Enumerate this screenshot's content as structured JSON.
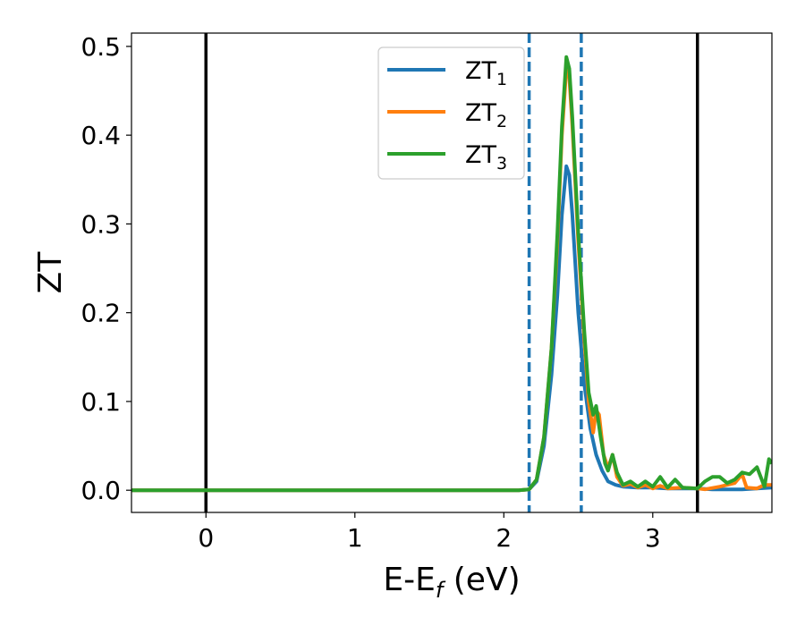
{
  "chart_data": {
    "type": "line",
    "title": "",
    "xlabel": {
      "main": "E-E",
      "sub": "f",
      "tail": " (eV)"
    },
    "ylabel": "ZT",
    "xlim": [
      -0.5,
      3.8
    ],
    "ylim": [
      -0.025,
      0.515
    ],
    "x_ticks": [
      {
        "value": 0,
        "label": "0"
      },
      {
        "value": 1,
        "label": "1"
      },
      {
        "value": 2,
        "label": "2"
      },
      {
        "value": 3,
        "label": "3"
      }
    ],
    "y_ticks": [
      {
        "value": 0.0,
        "label": "0.0"
      },
      {
        "value": 0.1,
        "label": "0.1"
      },
      {
        "value": 0.2,
        "label": "0.2"
      },
      {
        "value": 0.3,
        "label": "0.3"
      },
      {
        "value": 0.4,
        "label": "0.4"
      },
      {
        "value": 0.5,
        "label": "0.5"
      }
    ],
    "grid": false,
    "legend_position": "top-center",
    "vertical_lines": [
      {
        "x": 0.0,
        "style": "solid",
        "color": "#000000"
      },
      {
        "x": 3.3,
        "style": "solid",
        "color": "#000000"
      },
      {
        "x": 2.17,
        "style": "dashed",
        "color": "#1f77b4"
      },
      {
        "x": 2.52,
        "style": "dashed",
        "color": "#1f77b4"
      }
    ],
    "series": [
      {
        "name": {
          "main": "ZT",
          "sub": "1"
        },
        "color": "#1f77b4",
        "points": [
          [
            -0.5,
            0
          ],
          [
            2.1,
            0
          ],
          [
            2.17,
            0.001
          ],
          [
            2.22,
            0.01
          ],
          [
            2.27,
            0.05
          ],
          [
            2.32,
            0.13
          ],
          [
            2.36,
            0.22
          ],
          [
            2.39,
            0.31
          ],
          [
            2.42,
            0.365
          ],
          [
            2.44,
            0.355
          ],
          [
            2.46,
            0.31
          ],
          [
            2.5,
            0.2
          ],
          [
            2.54,
            0.12
          ],
          [
            2.58,
            0.07
          ],
          [
            2.62,
            0.04
          ],
          [
            2.66,
            0.022
          ],
          [
            2.7,
            0.01
          ],
          [
            2.75,
            0.006
          ],
          [
            2.8,
            0.004
          ],
          [
            2.9,
            0.003
          ],
          [
            3.0,
            0.003
          ],
          [
            3.1,
            0.002
          ],
          [
            3.2,
            0.002
          ],
          [
            3.3,
            0.002
          ],
          [
            3.4,
            0.001
          ],
          [
            3.5,
            0.001
          ],
          [
            3.6,
            0.001
          ],
          [
            3.7,
            0.002
          ],
          [
            3.8,
            0.003
          ]
        ]
      },
      {
        "name": {
          "main": "ZT",
          "sub": "2"
        },
        "color": "#ff7f0e",
        "points": [
          [
            -0.5,
            0
          ],
          [
            2.1,
            0
          ],
          [
            2.17,
            0.001
          ],
          [
            2.22,
            0.012
          ],
          [
            2.27,
            0.06
          ],
          [
            2.32,
            0.16
          ],
          [
            2.36,
            0.28
          ],
          [
            2.39,
            0.4
          ],
          [
            2.42,
            0.475
          ],
          [
            2.44,
            0.465
          ],
          [
            2.46,
            0.41
          ],
          [
            2.5,
            0.28
          ],
          [
            2.54,
            0.17
          ],
          [
            2.57,
            0.1
          ],
          [
            2.6,
            0.065
          ],
          [
            2.62,
            0.09
          ],
          [
            2.64,
            0.085
          ],
          [
            2.67,
            0.04
          ],
          [
            2.7,
            0.025
          ],
          [
            2.73,
            0.04
          ],
          [
            2.76,
            0.015
          ],
          [
            2.8,
            0.005
          ],
          [
            2.85,
            0.007
          ],
          [
            2.9,
            0.003
          ],
          [
            2.95,
            0.006
          ],
          [
            3.0,
            0.002
          ],
          [
            3.05,
            0.005
          ],
          [
            3.1,
            0.002
          ],
          [
            3.2,
            0.003
          ],
          [
            3.3,
            0.002
          ],
          [
            3.35,
            0.001
          ],
          [
            3.45,
            0.004
          ],
          [
            3.55,
            0.008
          ],
          [
            3.6,
            0.018
          ],
          [
            3.63,
            0.003
          ],
          [
            3.7,
            0.002
          ],
          [
            3.75,
            0.006
          ],
          [
            3.8,
            0.006
          ]
        ]
      },
      {
        "name": {
          "main": "ZT",
          "sub": "3"
        },
        "color": "#2ca02c",
        "points": [
          [
            -0.5,
            0
          ],
          [
            2.1,
            0
          ],
          [
            2.17,
            0.001
          ],
          [
            2.22,
            0.012
          ],
          [
            2.27,
            0.06
          ],
          [
            2.32,
            0.16
          ],
          [
            2.36,
            0.29
          ],
          [
            2.39,
            0.41
          ],
          [
            2.42,
            0.488
          ],
          [
            2.44,
            0.475
          ],
          [
            2.46,
            0.42
          ],
          [
            2.5,
            0.29
          ],
          [
            2.54,
            0.18
          ],
          [
            2.57,
            0.11
          ],
          [
            2.6,
            0.085
          ],
          [
            2.62,
            0.095
          ],
          [
            2.65,
            0.06
          ],
          [
            2.68,
            0.03
          ],
          [
            2.7,
            0.022
          ],
          [
            2.73,
            0.04
          ],
          [
            2.76,
            0.02
          ],
          [
            2.8,
            0.006
          ],
          [
            2.85,
            0.01
          ],
          [
            2.9,
            0.004
          ],
          [
            2.95,
            0.01
          ],
          [
            3.0,
            0.004
          ],
          [
            3.05,
            0.015
          ],
          [
            3.1,
            0.003
          ],
          [
            3.15,
            0.012
          ],
          [
            3.2,
            0.003
          ],
          [
            3.3,
            0.002
          ],
          [
            3.35,
            0.01
          ],
          [
            3.4,
            0.015
          ],
          [
            3.45,
            0.015
          ],
          [
            3.5,
            0.008
          ],
          [
            3.55,
            0.012
          ],
          [
            3.6,
            0.02
          ],
          [
            3.65,
            0.018
          ],
          [
            3.7,
            0.026
          ],
          [
            3.75,
            0.004
          ],
          [
            3.78,
            0.035
          ],
          [
            3.8,
            0.03
          ]
        ]
      }
    ]
  }
}
